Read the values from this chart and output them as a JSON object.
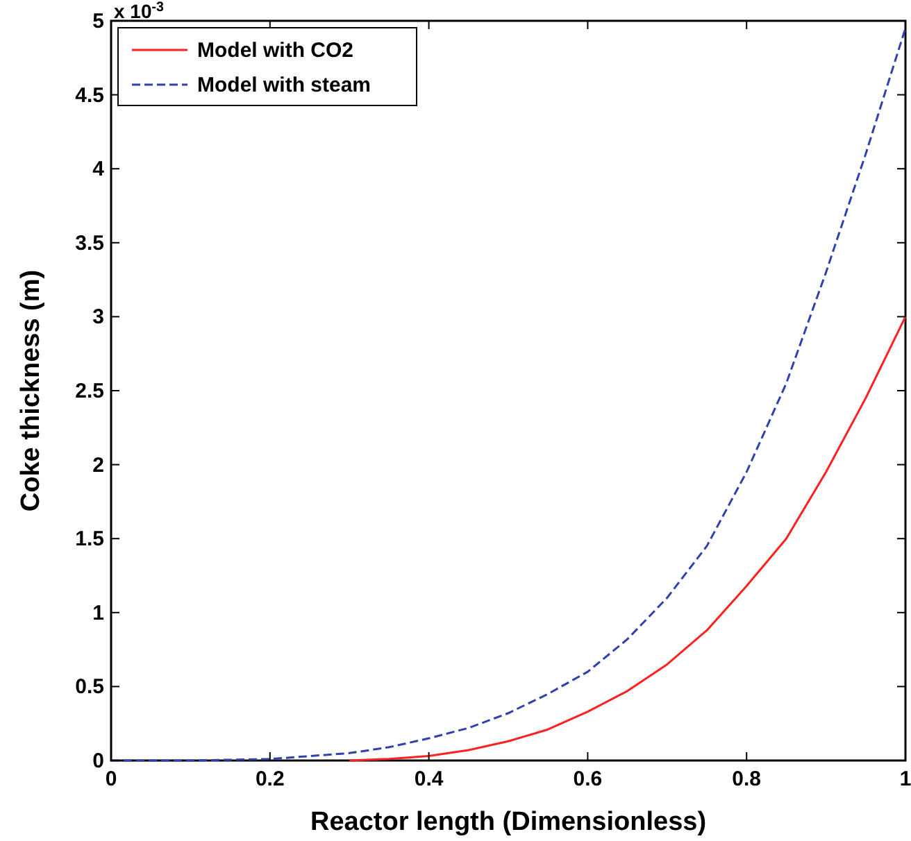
{
  "chart_data": {
    "type": "line",
    "xlabel": "Reactor length (Dimensionless)",
    "ylabel": "Coke thickness (m)",
    "annotations": [
      "x 10$^{-3}$"
    ],
    "x": [
      0,
      0.1,
      0.2,
      0.3,
      0.35,
      0.4,
      0.45,
      0.5,
      0.55,
      0.6,
      0.65,
      0.7,
      0.75,
      0.8,
      0.85,
      0.9,
      0.95,
      1
    ],
    "series": [
      {
        "name": "Model with CO2",
        "color": "#ff2020",
        "line_style": "solid",
        "values": [
          null,
          null,
          null,
          0,
          0.01,
          0.03,
          0.07,
          0.13,
          0.21,
          0.33,
          0.47,
          0.65,
          0.88,
          1.18,
          1.5,
          1.95,
          2.45,
          3.0
        ]
      },
      {
        "name": "Model with steam",
        "color": "#3040b0",
        "line_style": "dashed",
        "values": [
          0,
          0,
          0.01,
          0.05,
          0.09,
          0.15,
          0.22,
          0.32,
          0.45,
          0.6,
          0.82,
          1.1,
          1.45,
          1.95,
          2.55,
          3.3,
          4.1,
          4.95
        ]
      }
    ],
    "xlim": [
      0,
      1
    ],
    "xticks": [
      0,
      0.2,
      0.4,
      0.6,
      0.8,
      1
    ],
    "ylim": [
      0,
      5
    ],
    "yticks": [
      0,
      0.5,
      1,
      1.5,
      2,
      2.5,
      3,
      3.5,
      4,
      4.5,
      5
    ],
    "grid": false,
    "legend": "top left",
    "marker": "none"
  }
}
